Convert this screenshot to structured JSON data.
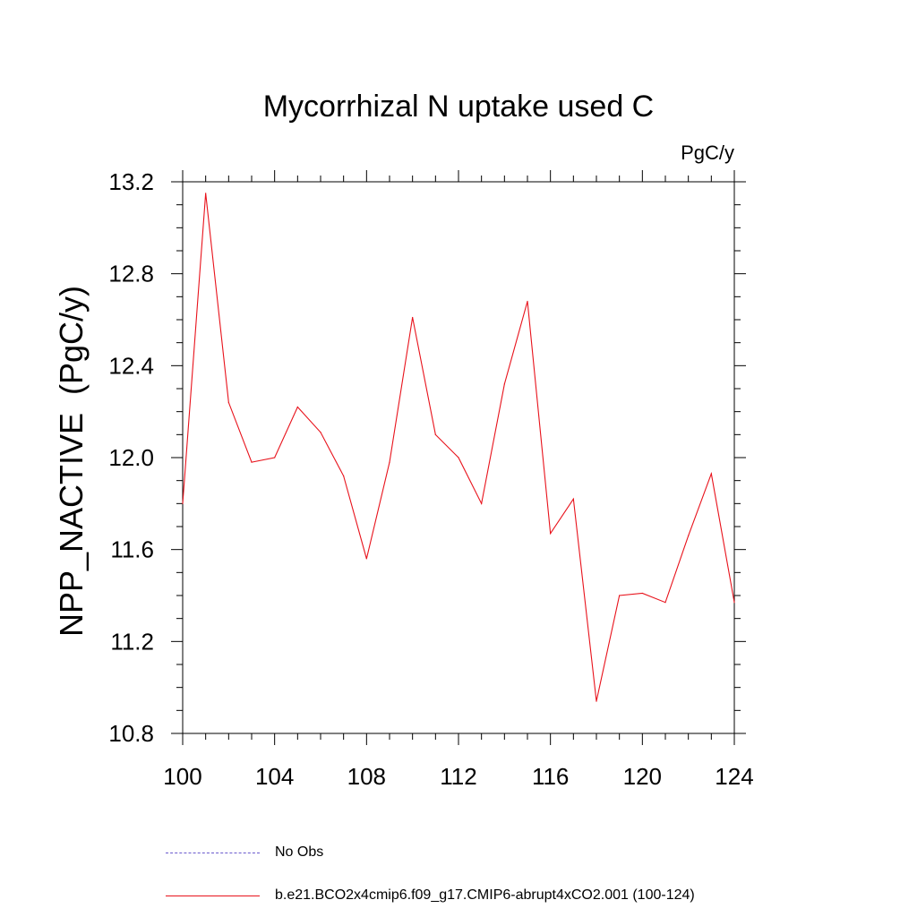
{
  "chart_data": {
    "type": "line",
    "title": "Mycorrhizal N uptake used C",
    "units_label": "PgC/y",
    "ylabel": "NPP_NACTIVE  (PgC/y)",
    "xlabel": "",
    "xlim": [
      100,
      124
    ],
    "ylim": [
      10.8,
      13.2
    ],
    "x_ticks": [
      100,
      104,
      108,
      112,
      116,
      120,
      124
    ],
    "x_tick_labels": [
      "100",
      "104",
      "108",
      "112",
      "116",
      "120",
      "124"
    ],
    "y_ticks": [
      10.8,
      11.2,
      11.6,
      12.0,
      12.4,
      12.8,
      13.2
    ],
    "y_tick_labels": [
      "10.8",
      "11.2",
      "11.6",
      "12.0",
      "12.4",
      "12.8",
      "13.2"
    ],
    "grid": false,
    "series": [
      {
        "name": "b.e21.BCO2x4cmip6.f09_g17.CMIP6-abrupt4xCO2.001 (100-124)",
        "color": "#e8121b",
        "x": [
          100,
          101,
          102,
          103,
          104,
          105,
          106,
          107,
          108,
          109,
          110,
          111,
          112,
          113,
          114,
          115,
          116,
          117,
          118,
          119,
          120,
          121,
          122,
          123,
          124
        ],
        "values": [
          11.8,
          13.15,
          12.24,
          11.98,
          12.0,
          12.22,
          12.11,
          11.92,
          11.56,
          11.98,
          12.61,
          12.1,
          12.0,
          11.8,
          12.32,
          12.68,
          11.67,
          11.82,
          10.94,
          11.4,
          11.41,
          11.37,
          11.66,
          11.93,
          11.37
        ]
      }
    ]
  },
  "legend": {
    "position": "bottom-left",
    "items": [
      {
        "label": "No Obs",
        "style": "dashed",
        "color": "#6a5acd"
      },
      {
        "label": "b.e21.BCO2x4cmip6.f09_g17.CMIP6-abrupt4xCO2.001 (100-124)",
        "style": "solid",
        "color": "#e8121b"
      }
    ]
  }
}
